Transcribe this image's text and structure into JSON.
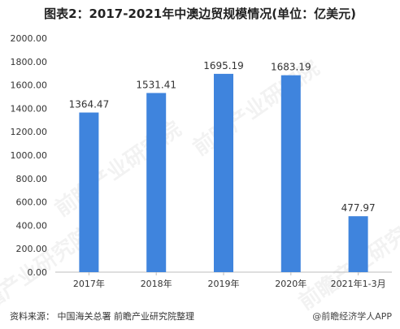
{
  "title": "图表2：2017-2021年中澳边贸规模情况(单位：亿美元)",
  "footer": {
    "source": "资料来源： 中国海关总署 前瞻产业研究院整理",
    "brand": "@前瞻经济学人APP"
  },
  "watermark": "前瞻产业研究院",
  "colors": {
    "bar": "#3f84dd",
    "axis": "#bdbdbd",
    "text": "#333333"
  },
  "chart_data": {
    "type": "bar",
    "title": "图表2：2017-2021年中澳边贸规模情况(单位：亿美元)",
    "categories": [
      "2017年",
      "2018年",
      "2019年",
      "2020年",
      "2021年1-3月"
    ],
    "values": [
      1364.47,
      1531.41,
      1695.19,
      1683.19,
      477.97
    ],
    "value_labels": [
      "1364.47",
      "1531.41",
      "1695.19",
      "1683.19",
      "477.97"
    ],
    "yticks": [
      "0.00",
      "200.00",
      "400.00",
      "600.00",
      "800.00",
      "1000.00",
      "1200.00",
      "1400.00",
      "1600.00",
      "1800.00",
      "2000.00"
    ],
    "ylim": [
      0,
      2000
    ],
    "grid": false,
    "xlabel": "",
    "ylabel": ""
  }
}
